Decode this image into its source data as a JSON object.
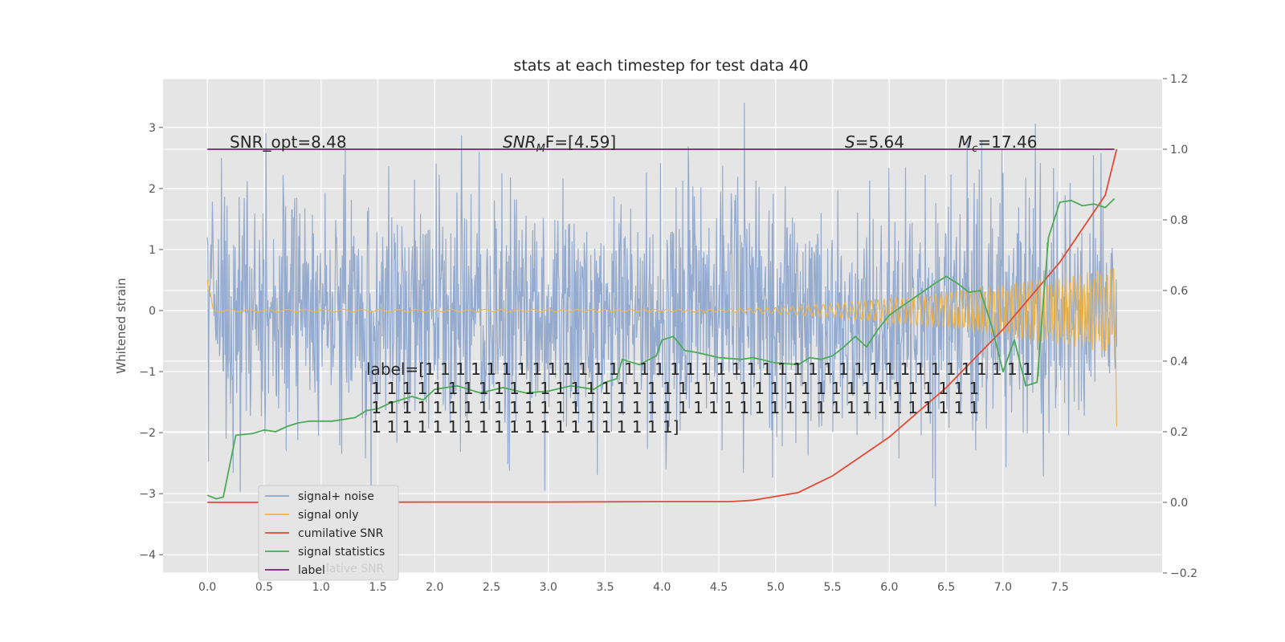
{
  "chart_data": {
    "type": "line",
    "title": "stats at each timestep for test data 40",
    "ylabel": "Whitened strain",
    "ylabel_right": "",
    "xlim": [
      -0.39,
      8.4
    ],
    "ylim": [
      -4.3,
      3.8
    ],
    "ylim_right": [
      -0.2,
      1.2
    ],
    "x_ticks": [
      "0.0",
      "0.5",
      "1.0",
      "1.5",
      "2.0",
      "2.5",
      "3.0",
      "3.5",
      "4.0",
      "4.5",
      "5.0",
      "5.5",
      "6.0",
      "6.5",
      "7.0",
      "7.5"
    ],
    "y_ticks": [
      "3",
      "2",
      "1",
      "0",
      "−1",
      "−2",
      "−3",
      "−4"
    ],
    "y_ticks_right": [
      "1.2",
      "1.0",
      "0.8",
      "0.6",
      "0.4",
      "0.2",
      "0.0",
      "−0.2"
    ],
    "grid": true,
    "annotations": {
      "snr_opt": "SNR_opt=8.48",
      "snr_mf_sub": "M",
      "snr_mf_value": "F=[4.59]",
      "s_value": "=5.64",
      "mc_sub": "c",
      "mc_value": "=17.46",
      "label_lines": [
        "label=[1 1 1 1 1 1 1 1 1 1 1 1 1 1 1 1 1 1 1 1 1 1 1 1 1 1 1 1 1 1 1 1 1 1 1 1 1 1 1 1",
        " 1 1 1 1 1 1 1 1 1 1 1 1 1 1 1 1 1 1 1 1 1 1 1 1 1 1 1 1 1 1 1 1 1 1 1 1 1 1 1 1",
        " 1 1 1 1 1 1 1 1 1 1 1 1 1 1 1 1 1 1 1 1 1 1 1 1 1 1 1 1 1 1 1 1 1 1 1 1 1 1 1 1",
        " 1 1 1 1 1 1 1 1 1 1 1 1 1 1 1 1 1 1 1 1]"
      ]
    },
    "legend_position": "lower-left",
    "series": [
      {
        "name": "signal+ noise",
        "color": "#8fa6cc",
        "axis": "left",
        "kind": "noise",
        "x_range": [
          0,
          8.0
        ],
        "amplitude_std": 1.0
      },
      {
        "name": "signal only",
        "color": "#f2b544",
        "axis": "left",
        "kind": "chirp",
        "x": [
          0,
          0.05,
          4.5,
          5.0,
          5.5,
          6.0,
          6.5,
          7.0,
          7.5,
          8.0
        ],
        "envelope": [
          0.6,
          0.02,
          0.02,
          0.05,
          0.12,
          0.2,
          0.3,
          0.42,
          0.55,
          0.7
        ]
      },
      {
        "name": "cumilative SNR",
        "color": "#e24a33",
        "axis": "right",
        "x": [
          0,
          1,
          2,
          3,
          4,
          4.6,
          4.8,
          5.2,
          5.5,
          6.0,
          6.5,
          7.0,
          7.5,
          7.9,
          8.0
        ],
        "values": [
          0.0,
          0.0,
          0.001,
          0.001,
          0.002,
          0.002,
          0.006,
          0.028,
          0.075,
          0.185,
          0.325,
          0.49,
          0.68,
          0.87,
          1.0
        ]
      },
      {
        "name": "signal statistics",
        "color": "#4daa57",
        "axis": "right",
        "x": [
          0,
          0.08,
          0.14,
          0.25,
          0.4,
          0.5,
          0.6,
          0.7,
          0.8,
          0.9,
          1.0,
          1.1,
          1.2,
          1.3,
          1.4,
          1.5,
          1.6,
          1.7,
          1.8,
          1.9,
          2.0,
          2.2,
          2.4,
          2.6,
          2.8,
          3.0,
          3.2,
          3.4,
          3.5,
          3.6,
          3.65,
          3.8,
          3.95,
          4.0,
          4.1,
          4.2,
          4.3,
          4.5,
          4.7,
          4.8,
          5.0,
          5.2,
          5.3,
          5.4,
          5.5,
          5.6,
          5.7,
          5.8,
          5.9,
          6.0,
          6.2,
          6.4,
          6.5,
          6.6,
          6.7,
          6.8,
          6.9,
          7.0,
          7.1,
          7.2,
          7.3,
          7.35,
          7.4,
          7.5,
          7.6,
          7.7,
          7.8,
          7.9,
          7.98
        ],
        "values": [
          0.02,
          0.01,
          0.015,
          0.19,
          0.195,
          0.205,
          0.2,
          0.215,
          0.225,
          0.23,
          0.23,
          0.23,
          0.235,
          0.24,
          0.26,
          0.265,
          0.28,
          0.29,
          0.3,
          0.29,
          0.32,
          0.33,
          0.31,
          0.325,
          0.31,
          0.315,
          0.33,
          0.32,
          0.34,
          0.35,
          0.405,
          0.39,
          0.415,
          0.46,
          0.47,
          0.43,
          0.425,
          0.41,
          0.405,
          0.41,
          0.395,
          0.39,
          0.41,
          0.405,
          0.415,
          0.44,
          0.47,
          0.44,
          0.49,
          0.53,
          0.575,
          0.62,
          0.64,
          0.62,
          0.595,
          0.6,
          0.5,
          0.37,
          0.46,
          0.33,
          0.34,
          0.55,
          0.75,
          0.85,
          0.855,
          0.84,
          0.845,
          0.835,
          0.86
        ]
      },
      {
        "name": "label",
        "color": "#7b1f7b",
        "axis": "right",
        "x": [
          0,
          7.98
        ],
        "values": [
          1.0,
          1.0
        ]
      }
    ],
    "legend_overlap_ghost": "lative SNR"
  }
}
